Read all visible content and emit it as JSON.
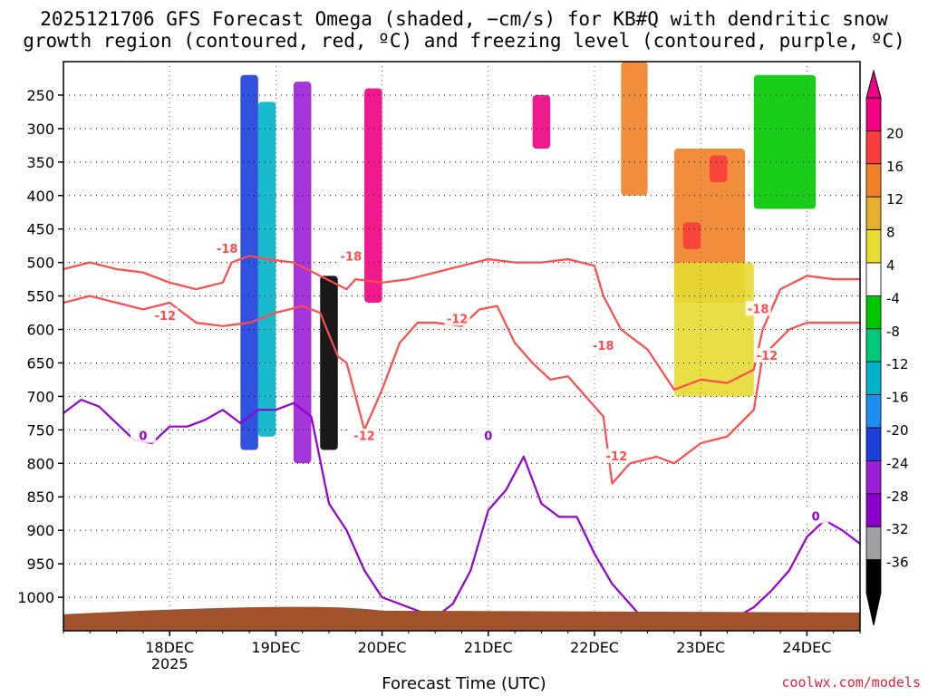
{
  "title": {
    "line1": "2025121706 GFS Forecast Omega (shaded, −cm/s) for KB#Q with dendritic snow",
    "line2": "growth region (contoured, red, ºC) and freezing level (contoured, purple, ºC)"
  },
  "credit": "coolwx.com/models",
  "chart_data": {
    "type": "heatmap",
    "xlabel": "Forecast Time (UTC)",
    "ylabel": "",
    "x_range_hours": [
      -18,
      162
    ],
    "x_ticks": [
      {
        "label": "18DEC",
        "sublabel": "2025",
        "hour": 6
      },
      {
        "label": "19DEC",
        "sublabel": "",
        "hour": 30
      },
      {
        "label": "20DEC",
        "sublabel": "",
        "hour": 54
      },
      {
        "label": "21DEC",
        "sublabel": "",
        "hour": 78
      },
      {
        "label": "22DEC",
        "sublabel": "",
        "hour": 102
      },
      {
        "label": "23DEC",
        "sublabel": "",
        "hour": 126
      },
      {
        "label": "24DEC",
        "sublabel": "",
        "hour": 150
      }
    ],
    "y_axis": "pressure_hPa",
    "y_range": [
      200,
      1050
    ],
    "y_ticks": [
      250,
      300,
      350,
      400,
      450,
      500,
      550,
      600,
      650,
      700,
      750,
      800,
      850,
      900,
      950,
      1000
    ],
    "grid": true,
    "colorbar": {
      "levels": [
        -36,
        -32,
        -28,
        -24,
        -20,
        -16,
        -12,
        -8,
        -4,
        4,
        8,
        12,
        16,
        20
      ],
      "labels": [
        "-36",
        "-32",
        "-28",
        "-24",
        "-20",
        "-16",
        "-12",
        "-8",
        "-4",
        "4",
        "8",
        "12",
        "16",
        "20"
      ],
      "colors": [
        "#000000",
        "#a0a0a0",
        "#8c00cc",
        "#9a1fd4",
        "#1b3fd8",
        "#1e8ff0",
        "#00b3c8",
        "#00c878",
        "#00c800",
        "#ffffff",
        "#e6dc32",
        "#e6af2d",
        "#f08228",
        "#fa3c3c",
        "#f00082"
      ]
    },
    "omega_features": [
      {
        "hour_start": 22,
        "hour_end": 26,
        "p_top": 220,
        "p_bottom": 780,
        "value": -24
      },
      {
        "hour_start": 26,
        "hour_end": 30,
        "p_top": 260,
        "p_bottom": 760,
        "value": -16
      },
      {
        "hour_start": 34,
        "hour_end": 38,
        "p_top": 230,
        "p_bottom": 800,
        "value": -28
      },
      {
        "hour_start": 40,
        "hour_end": 44,
        "p_top": 520,
        "p_bottom": 780,
        "value": -36
      },
      {
        "hour_start": 50,
        "hour_end": 54,
        "p_top": 240,
        "p_bottom": 560,
        "value": 20
      },
      {
        "hour_start": 88,
        "hour_end": 92,
        "p_top": 250,
        "p_bottom": 330,
        "value": 20
      },
      {
        "hour_start": 108,
        "hour_end": 114,
        "p_top": 200,
        "p_bottom": 400,
        "value": 12
      },
      {
        "hour_start": 120,
        "hour_end": 136,
        "p_top": 330,
        "p_bottom": 560,
        "value": 12
      },
      {
        "hour_start": 122,
        "hour_end": 126,
        "p_top": 440,
        "p_bottom": 480,
        "value": 16
      },
      {
        "hour_start": 128,
        "hour_end": 132,
        "p_top": 340,
        "p_bottom": 380,
        "value": 16
      },
      {
        "hour_start": 120,
        "hour_end": 138,
        "p_top": 500,
        "p_bottom": 700,
        "value": 4
      },
      {
        "hour_start": 138,
        "hour_end": 152,
        "p_top": 220,
        "p_bottom": 420,
        "value": -8
      },
      {
        "hour_start": 152,
        "hour_end": 160,
        "p_top": 240,
        "p_bottom": 300,
        "value": -4
      }
    ],
    "series": [
      {
        "name": "-18",
        "color": "#ff4b4b",
        "x": [
          -18,
          -12,
          -6,
          0,
          6,
          12,
          18,
          20,
          24,
          28,
          34,
          40,
          46,
          48,
          54,
          60,
          66,
          72,
          78,
          84,
          90,
          96,
          102,
          104,
          108,
          112,
          114,
          120,
          126,
          132,
          138,
          140,
          144,
          150,
          156,
          162
        ],
        "y": [
          510,
          500,
          510,
          515,
          530,
          540,
          530,
          500,
          490,
          495,
          500,
          520,
          540,
          525,
          530,
          525,
          515,
          505,
          495,
          500,
          500,
          495,
          505,
          550,
          600,
          620,
          630,
          690,
          675,
          680,
          660,
          600,
          540,
          520,
          525,
          525
        ]
      },
      {
        "name": "-12",
        "color": "#ff4b4b",
        "x": [
          -18,
          -12,
          -6,
          0,
          6,
          12,
          18,
          24,
          30,
          36,
          40,
          44,
          46,
          48,
          50,
          54,
          58,
          62,
          66,
          72,
          76,
          80,
          84,
          88,
          92,
          96,
          100,
          104,
          106,
          110,
          116,
          120,
          126,
          132,
          138,
          140,
          146,
          150,
          156,
          162
        ],
        "y": [
          560,
          550,
          560,
          570,
          560,
          590,
          595,
          590,
          575,
          565,
          575,
          640,
          650,
          700,
          750,
          690,
          620,
          590,
          590,
          595,
          570,
          565,
          620,
          650,
          675,
          670,
          700,
          730,
          830,
          800,
          790,
          800,
          770,
          760,
          720,
          640,
          600,
          590,
          590,
          590
        ]
      },
      {
        "name": "0",
        "color": "#9400d3",
        "x": [
          -18,
          -14,
          -10,
          -6,
          -2,
          2,
          6,
          10,
          14,
          18,
          22,
          26,
          30,
          34,
          38,
          42,
          46,
          50,
          54,
          58,
          62,
          66,
          70,
          74,
          78,
          82,
          86,
          90,
          94,
          98,
          102,
          106,
          110,
          114,
          118,
          122,
          126,
          130,
          134,
          138,
          142,
          146,
          150,
          154,
          158,
          162
        ],
        "y": [
          725,
          705,
          715,
          740,
          765,
          770,
          745,
          745,
          735,
          720,
          740,
          720,
          720,
          710,
          730,
          860,
          900,
          960,
          1000,
          1010,
          1020,
          1030,
          1010,
          960,
          870,
          840,
          790,
          860,
          880,
          880,
          935,
          980,
          1010,
          1040,
          1045,
          1045,
          1045,
          1040,
          1030,
          1015,
          990,
          960,
          910,
          885,
          900,
          920
        ]
      }
    ],
    "contour_labels": [
      {
        "text": "-18",
        "hour": 19,
        "p": 480
      },
      {
        "text": "-18",
        "hour": 47,
        "p": 492
      },
      {
        "text": "-18",
        "hour": 104,
        "p": 625
      },
      {
        "text": "-18",
        "hour": 139,
        "p": 570
      },
      {
        "text": "-12",
        "hour": 5,
        "p": 580
      },
      {
        "text": "-12",
        "hour": 50,
        "p": 760
      },
      {
        "text": "-12",
        "hour": 71,
        "p": 585
      },
      {
        "text": "-12",
        "hour": 107,
        "p": 790
      },
      {
        "text": "-12",
        "hour": 141,
        "p": 640
      },
      {
        "text": "0",
        "hour": 0,
        "p": 760
      },
      {
        "text": "0",
        "hour": 78,
        "p": 760
      },
      {
        "text": "0",
        "hour": 152,
        "p": 880
      }
    ],
    "terrain_pressure_hPa": 1020
  }
}
